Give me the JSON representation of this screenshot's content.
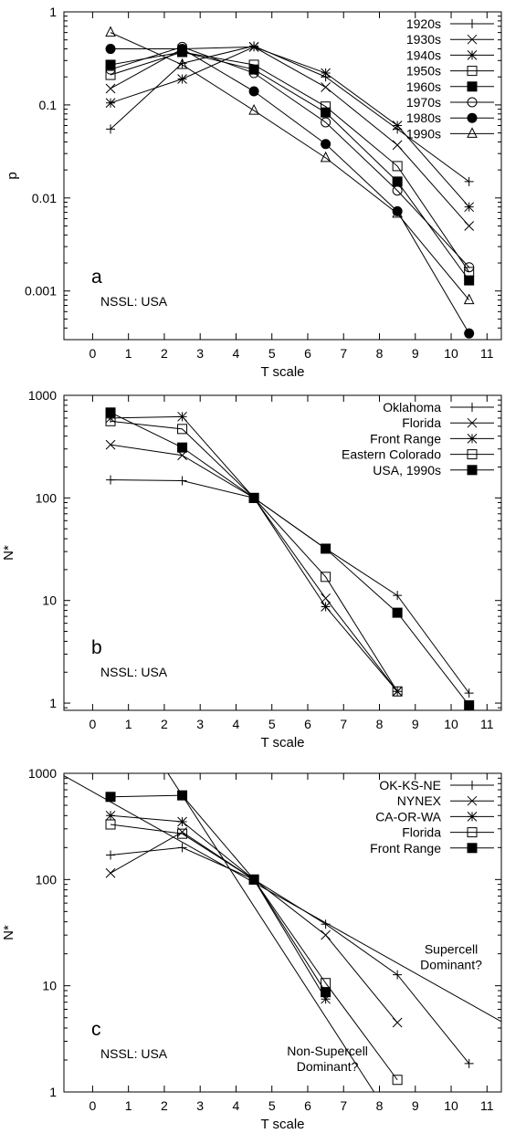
{
  "chart_data": [
    {
      "type": "line",
      "panel_letter": "a",
      "panel_label": "NSSL: USA",
      "xlabel": "T scale",
      "ylabel": "p",
      "xlim": [
        -0.8,
        11.4
      ],
      "ylim": [
        0.0003,
        1
      ],
      "y_scale": "log",
      "x_ticks": [
        "0",
        "1",
        "2",
        "3",
        "4",
        "5",
        "6",
        "7",
        "8",
        "9",
        "10",
        "11"
      ],
      "y_ticks": [
        {
          "value": 0.001,
          "label": "0.001"
        },
        {
          "value": 0.01,
          "label": "0.01"
        },
        {
          "value": 0.1,
          "label": "0.1"
        },
        {
          "value": 1,
          "label": "1"
        }
      ],
      "legend_position": "top-right",
      "series": [
        {
          "name": "1920s",
          "marker": "plus",
          "x": [
            0.5,
            2.5,
            4.5,
            6.5,
            8.5,
            10.5
          ],
          "y": [
            0.055,
            0.28,
            0.43,
            0.2,
            0.055,
            0.015
          ]
        },
        {
          "name": "1930s",
          "marker": "x",
          "x": [
            0.5,
            2.5,
            4.5,
            6.5,
            8.5,
            10.5
          ],
          "y": [
            0.15,
            0.4,
            0.42,
            0.155,
            0.037,
            0.005
          ]
        },
        {
          "name": "1940s",
          "marker": "star",
          "x": [
            0.5,
            2.5,
            4.5,
            6.5,
            8.5,
            10.5
          ],
          "y": [
            0.105,
            0.19,
            0.42,
            0.22,
            0.06,
            0.008
          ]
        },
        {
          "name": "1950s",
          "marker": "square",
          "x": [
            0.5,
            2.5,
            4.5,
            6.5,
            8.5,
            10.5
          ],
          "y": [
            0.21,
            0.37,
            0.27,
            0.096,
            0.022,
            0.0016
          ]
        },
        {
          "name": "1960s",
          "marker": "square-filled",
          "x": [
            0.5,
            2.5,
            4.5,
            6.5,
            8.5,
            10.5
          ],
          "y": [
            0.27,
            0.37,
            0.24,
            0.083,
            0.015,
            0.0013
          ]
        },
        {
          "name": "1970s",
          "marker": "circle",
          "x": [
            0.5,
            2.5,
            4.5,
            6.5,
            8.5,
            10.5
          ],
          "y": [
            0.24,
            0.42,
            0.22,
            0.065,
            0.012,
            0.0018
          ]
        },
        {
          "name": "1980s",
          "marker": "circle-filled",
          "x": [
            0.5,
            2.5,
            4.5,
            6.5,
            8.5,
            10.5
          ],
          "y": [
            0.4,
            0.4,
            0.14,
            0.038,
            0.0072,
            0.00035
          ]
        },
        {
          "name": "1990s",
          "marker": "triangle",
          "x": [
            0.5,
            2.5,
            4.5,
            6.5,
            8.5,
            10.5
          ],
          "y": [
            0.6,
            0.27,
            0.087,
            0.027,
            0.0068,
            0.0008
          ]
        }
      ],
      "reference_lines": [],
      "annotations": []
    },
    {
      "type": "line",
      "panel_letter": "b",
      "panel_label": "NSSL: USA",
      "xlabel": "T scale",
      "ylabel": "N*",
      "xlim": [
        -0.8,
        11.4
      ],
      "ylim": [
        0.85,
        1000
      ],
      "y_scale": "log",
      "x_ticks": [
        "0",
        "1",
        "2",
        "3",
        "4",
        "5",
        "6",
        "7",
        "8",
        "9",
        "10",
        "11"
      ],
      "y_ticks": [
        {
          "value": 1,
          "label": "1"
        },
        {
          "value": 10,
          "label": "10"
        },
        {
          "value": 100,
          "label": "100"
        },
        {
          "value": 1000,
          "label": "1000"
        }
      ],
      "legend_position": "top-right",
      "series": [
        {
          "name": "Oklahoma",
          "marker": "plus",
          "x": [
            0.5,
            2.5,
            4.5,
            6.5,
            8.5,
            10.5
          ],
          "y": [
            150,
            147,
            100,
            32,
            11.2,
            1.25
          ]
        },
        {
          "name": "Florida",
          "marker": "x",
          "x": [
            0.5,
            2.5,
            4.5,
            6.5,
            8.5
          ],
          "y": [
            330,
            260,
            100,
            10.5,
            1.3
          ]
        },
        {
          "name": "Front Range",
          "marker": "star",
          "x": [
            0.5,
            2.5,
            4.5,
            6.5,
            8.5
          ],
          "y": [
            600,
            620,
            100,
            8.7,
            1.3
          ]
        },
        {
          "name": "Eastern Colorado",
          "marker": "square",
          "x": [
            0.5,
            2.5,
            4.5,
            6.5,
            8.5
          ],
          "y": [
            560,
            470,
            100,
            17,
            1.3
          ]
        },
        {
          "name": "USA, 1990s",
          "marker": "square-filled",
          "x": [
            0.5,
            2.5,
            4.5,
            6.5,
            8.5,
            10.5
          ],
          "y": [
            680,
            310,
            100,
            32,
            7.6,
            0.95
          ]
        }
      ],
      "reference_lines": [],
      "annotations": []
    },
    {
      "type": "line",
      "panel_letter": "c",
      "panel_label": "NSSL: USA",
      "xlabel": "T scale",
      "ylabel": "N*",
      "xlim": [
        -0.8,
        11.4
      ],
      "ylim": [
        1,
        1000
      ],
      "y_scale": "log",
      "x_ticks": [
        "0",
        "1",
        "2",
        "3",
        "4",
        "5",
        "6",
        "7",
        "8",
        "9",
        "10",
        "11"
      ],
      "y_ticks": [
        {
          "value": 1,
          "label": "1"
        },
        {
          "value": 10,
          "label": "10"
        },
        {
          "value": 100,
          "label": "100"
        },
        {
          "value": 1000,
          "label": "1000"
        }
      ],
      "legend_position": "top-right",
      "series": [
        {
          "name": "OK-KS-NE",
          "marker": "plus",
          "x": [
            0.5,
            2.5,
            4.5,
            6.5,
            8.5,
            10.5
          ],
          "y": [
            170,
            200,
            100,
            38,
            12.7,
            1.85
          ]
        },
        {
          "name": "NYNEX",
          "marker": "x",
          "x": [
            0.5,
            2.5,
            4.5,
            6.5,
            8.5
          ],
          "y": [
            115,
            280,
            100,
            30,
            4.5
          ]
        },
        {
          "name": "CA-OR-WA",
          "marker": "star",
          "x": [
            0.5,
            2.5,
            4.5,
            6.5
          ],
          "y": [
            400,
            350,
            100,
            7.5
          ]
        },
        {
          "name": "Florida",
          "marker": "square",
          "x": [
            0.5,
            2.5,
            4.5,
            6.5,
            8.5
          ],
          "y": [
            330,
            270,
            100,
            10.6,
            1.3
          ]
        },
        {
          "name": "Front Range",
          "marker": "square-filled",
          "x": [
            0.5,
            2.5,
            4.5,
            6.5
          ],
          "y": [
            600,
            620,
            100,
            8.7
          ]
        }
      ],
      "reference_lines": [
        {
          "x": [
            -0.8,
            11.4
          ],
          "y": [
            950,
            4.6
          ]
        },
        {
          "x": [
            2.1,
            7.85
          ],
          "y": [
            1000,
            1
          ]
        }
      ],
      "annotations": [
        {
          "lines": [
            "Supercell",
            "Dominant?"
          ],
          "x": 10.0,
          "y": 20
        },
        {
          "lines": [
            "Non-Supercell",
            "Dominant?"
          ],
          "x": 6.55,
          "y": 2.2
        }
      ]
    }
  ]
}
